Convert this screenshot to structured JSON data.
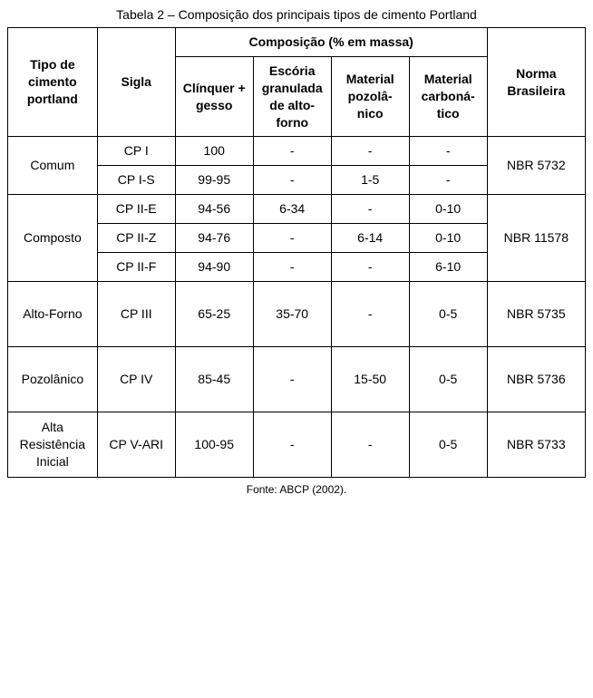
{
  "caption": "Tabela 2 – Composição dos principais tipos de cimento Portland",
  "source": "Fonte: ABCP (2002).",
  "headers": {
    "tipo": "Tipo de cimento portland",
    "sigla": "Sigla",
    "composicao": "Composição (% em massa)",
    "clinquer": "Clínquer + gesso",
    "escoria": "Escória granulada de alto-forno",
    "pozolanico": "Material pozolâ-nico",
    "carbonatico": "Material carboná-tico",
    "norma": "Norma Brasileira"
  },
  "groups": [
    {
      "tipo": "Comum",
      "norma": "NBR 5732",
      "rows": [
        {
          "sigla": "CP I",
          "clinquer": "100",
          "escoria": "-",
          "pozol": "-",
          "carb": "-"
        },
        {
          "sigla": "CP I-S",
          "clinquer": "99-95",
          "escoria": "-",
          "pozol": "1-5",
          "carb": "-"
        }
      ]
    },
    {
      "tipo": "Composto",
      "norma": "NBR 11578",
      "rows": [
        {
          "sigla": "CP II-E",
          "clinquer": "94-56",
          "escoria": "6-34",
          "pozol": "-",
          "carb": "0-10"
        },
        {
          "sigla": "CP II-Z",
          "clinquer": "94-76",
          "escoria": "-",
          "pozol": "6-14",
          "carb": "0-10"
        },
        {
          "sigla": "CP II-F",
          "clinquer": "94-90",
          "escoria": "-",
          "pozol": "-",
          "carb": "6-10"
        }
      ]
    },
    {
      "tipo": "Alto-Forno",
      "norma": "NBR 5735",
      "rows": [
        {
          "sigla": "CP III",
          "clinquer": "65-25",
          "escoria": "35-70",
          "pozol": "-",
          "carb": "0-5"
        }
      ]
    },
    {
      "tipo": "Pozolânico",
      "norma": "NBR 5736",
      "rows": [
        {
          "sigla": "CP IV",
          "clinquer": "85-45",
          "escoria": "-",
          "pozol": "15-50",
          "carb": "0-5"
        }
      ]
    },
    {
      "tipo": "Alta Resistência Inicial",
      "norma": "NBR 5733",
      "rows": [
        {
          "sigla": "CP V-ARI",
          "clinquer": "100-95",
          "escoria": "-",
          "pozol": "-",
          "carb": "0-5"
        }
      ]
    }
  ],
  "style": {
    "font_family": "Arial",
    "cell_fontsize_pt": 11,
    "caption_fontsize_pt": 11,
    "source_fontsize_pt": 9,
    "border_color": "#000000",
    "background_color": "#ffffff",
    "text_color": "#000000",
    "column_widths_pct": {
      "tipo": 15.5,
      "sigla": 13.5,
      "comp_each": 13.5,
      "norma": 17
    }
  }
}
